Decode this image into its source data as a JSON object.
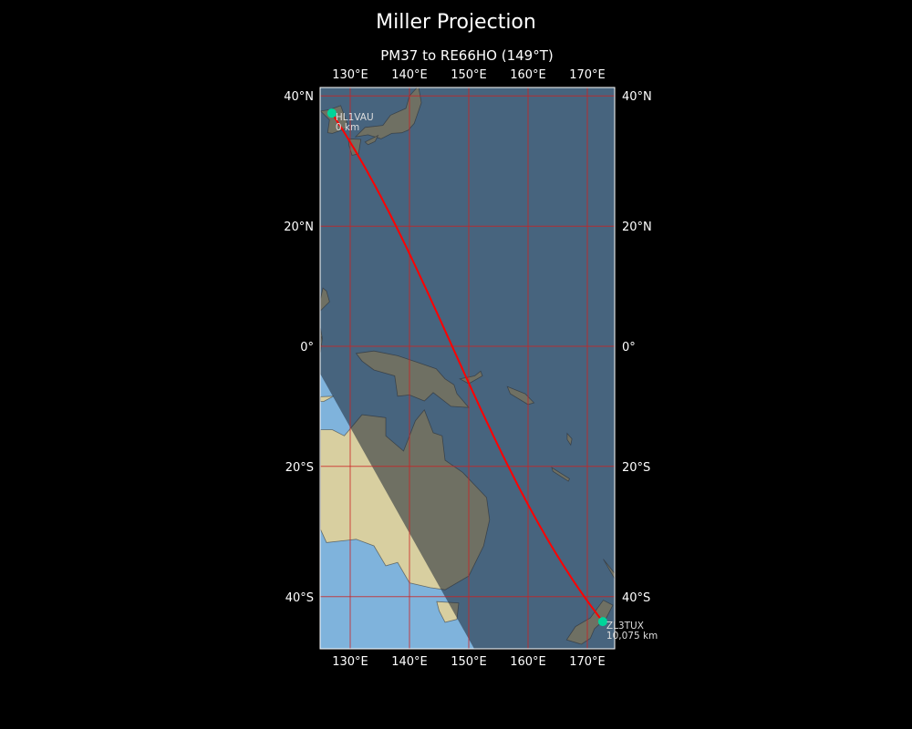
{
  "title": "Miller Projection",
  "subtitle": "PM37 to RE66HO (149°T)",
  "chart_data": {
    "type": "map",
    "projection": "Miller",
    "extent": {
      "lon": [
        125,
        175
      ],
      "lat": [
        -48,
        41
      ]
    },
    "grid": true,
    "grid_color": "#cc2222",
    "path_color": "#ff0000",
    "marker_color": "#00d49a",
    "lon_ticks": [
      {
        "value": 130,
        "label": "130°E"
      },
      {
        "value": 140,
        "label": "140°E"
      },
      {
        "value": 150,
        "label": "150°E"
      },
      {
        "value": 160,
        "label": "160°E"
      },
      {
        "value": 170,
        "label": "170°E"
      }
    ],
    "lat_ticks": [
      {
        "value": 40,
        "label": "40°N"
      },
      {
        "value": 20,
        "label": "20°N"
      },
      {
        "value": 0,
        "label": "0°"
      },
      {
        "value": -20,
        "label": "20°S"
      },
      {
        "value": -40,
        "label": "40°S"
      }
    ],
    "markers": [
      {
        "call": "HL1VAU",
        "distance": "0 km",
        "lon": 126.9,
        "lat": 37.5
      },
      {
        "call": "ZL3TUX",
        "distance": "10,075 km",
        "lon": 172.6,
        "lat": -43.5
      }
    ],
    "night_shading": true
  }
}
